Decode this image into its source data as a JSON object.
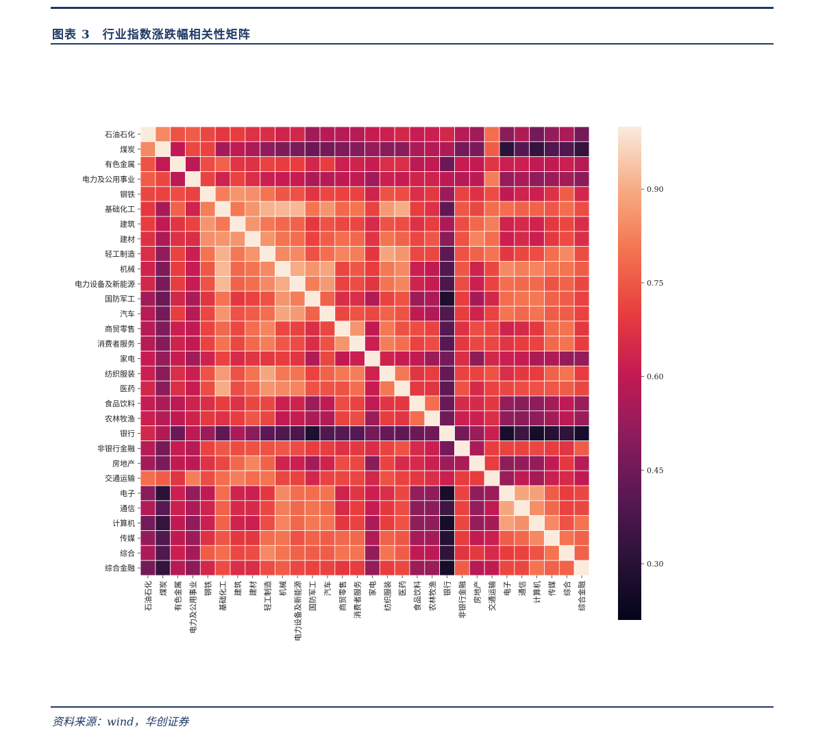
{
  "header": {
    "title": "图表 3　行业指数涨跌幅相关性矩阵"
  },
  "footer": {
    "source": "资料来源：wind，华创证券"
  },
  "chart_data": {
    "type": "heatmap",
    "title": "",
    "xlabel": "",
    "ylabel": "",
    "categories": [
      "石油石化",
      "煤炭",
      "有色金属",
      "电力及公用事业",
      "钢铁",
      "基础化工",
      "建筑",
      "建材",
      "轻工制造",
      "机械",
      "电力设备及新能源",
      "国防军工",
      "汽车",
      "商贸零售",
      "消费者服务",
      "家电",
      "纺织服装",
      "医药",
      "食品饮料",
      "农林牧渔",
      "银行",
      "非银行金融",
      "房地产",
      "交通运输",
      "电子",
      "通信",
      "计算机",
      "传媒",
      "综合",
      "综合金融"
    ],
    "values": [
      [
        1.0,
        0.84,
        0.74,
        0.76,
        0.72,
        0.69,
        0.7,
        0.67,
        0.66,
        0.63,
        0.64,
        0.54,
        0.58,
        0.58,
        0.58,
        0.61,
        0.62,
        0.64,
        0.61,
        0.62,
        0.64,
        0.58,
        0.54,
        0.79,
        0.5,
        0.57,
        0.46,
        0.52,
        0.56,
        0.46
      ],
      [
        0.84,
        1.0,
        0.6,
        0.72,
        0.71,
        0.55,
        0.6,
        0.56,
        0.51,
        0.48,
        0.47,
        0.44,
        0.46,
        0.48,
        0.49,
        0.52,
        0.5,
        0.5,
        0.56,
        0.58,
        0.57,
        0.46,
        0.47,
        0.76,
        0.31,
        0.4,
        0.33,
        0.39,
        0.39,
        0.33
      ],
      [
        0.74,
        0.6,
        1.0,
        0.59,
        0.73,
        0.77,
        0.68,
        0.67,
        0.71,
        0.7,
        0.7,
        0.64,
        0.7,
        0.62,
        0.63,
        0.61,
        0.66,
        0.66,
        0.59,
        0.6,
        0.44,
        0.61,
        0.6,
        0.68,
        0.62,
        0.62,
        0.6,
        0.6,
        0.62,
        0.58
      ],
      [
        0.76,
        0.72,
        0.59,
        1.0,
        0.71,
        0.63,
        0.71,
        0.66,
        0.62,
        0.61,
        0.61,
        0.56,
        0.58,
        0.6,
        0.6,
        0.54,
        0.62,
        0.61,
        0.63,
        0.63,
        0.59,
        0.58,
        0.59,
        0.82,
        0.52,
        0.56,
        0.51,
        0.53,
        0.55,
        0.5
      ],
      [
        0.72,
        0.71,
        0.73,
        0.71,
        1.0,
        0.82,
        0.86,
        0.85,
        0.8,
        0.75,
        0.74,
        0.68,
        0.72,
        0.71,
        0.71,
        0.63,
        0.74,
        0.73,
        0.66,
        0.69,
        0.53,
        0.71,
        0.67,
        0.73,
        0.6,
        0.63,
        0.62,
        0.67,
        0.76,
        0.64
      ],
      [
        0.69,
        0.55,
        0.77,
        0.63,
        0.82,
        1.0,
        0.81,
        0.86,
        0.91,
        0.92,
        0.92,
        0.8,
        0.86,
        0.78,
        0.8,
        0.71,
        0.87,
        0.9,
        0.7,
        0.67,
        0.42,
        0.75,
        0.72,
        0.79,
        0.79,
        0.77,
        0.77,
        0.75,
        0.79,
        0.73
      ],
      [
        0.7,
        0.6,
        0.68,
        0.71,
        0.86,
        0.81,
        1.0,
        0.86,
        0.81,
        0.78,
        0.77,
        0.69,
        0.74,
        0.72,
        0.72,
        0.65,
        0.74,
        0.73,
        0.67,
        0.7,
        0.56,
        0.73,
        0.78,
        0.82,
        0.63,
        0.65,
        0.63,
        0.69,
        0.72,
        0.66
      ],
      [
        0.67,
        0.56,
        0.67,
        0.66,
        0.85,
        0.86,
        0.86,
        1.0,
        0.86,
        0.8,
        0.79,
        0.71,
        0.76,
        0.79,
        0.78,
        0.68,
        0.8,
        0.77,
        0.72,
        0.75,
        0.5,
        0.74,
        0.83,
        0.79,
        0.62,
        0.65,
        0.62,
        0.69,
        0.73,
        0.66
      ],
      [
        0.66,
        0.51,
        0.71,
        0.62,
        0.8,
        0.91,
        0.81,
        0.86,
        1.0,
        0.84,
        0.84,
        0.74,
        0.79,
        0.83,
        0.82,
        0.69,
        0.89,
        0.86,
        0.72,
        0.72,
        0.41,
        0.74,
        0.77,
        0.8,
        0.69,
        0.72,
        0.73,
        0.79,
        0.84,
        0.73
      ],
      [
        0.63,
        0.48,
        0.7,
        0.61,
        0.75,
        0.92,
        0.78,
        0.8,
        0.84,
        1.0,
        0.9,
        0.86,
        0.89,
        0.72,
        0.75,
        0.7,
        0.81,
        0.84,
        0.62,
        0.6,
        0.39,
        0.75,
        0.63,
        0.72,
        0.84,
        0.82,
        0.83,
        0.8,
        0.8,
        0.76
      ],
      [
        0.64,
        0.47,
        0.7,
        0.61,
        0.74,
        0.92,
        0.77,
        0.79,
        0.84,
        0.9,
        1.0,
        0.82,
        0.87,
        0.71,
        0.73,
        0.68,
        0.8,
        0.83,
        0.63,
        0.61,
        0.38,
        0.73,
        0.62,
        0.71,
        0.79,
        0.78,
        0.78,
        0.74,
        0.77,
        0.72
      ],
      [
        0.54,
        0.44,
        0.64,
        0.56,
        0.68,
        0.8,
        0.69,
        0.71,
        0.74,
        0.86,
        0.82,
        1.0,
        0.77,
        0.66,
        0.66,
        0.57,
        0.71,
        0.74,
        0.53,
        0.56,
        0.28,
        0.7,
        0.55,
        0.64,
        0.79,
        0.8,
        0.81,
        0.77,
        0.76,
        0.71
      ],
      [
        0.58,
        0.46,
        0.7,
        0.58,
        0.72,
        0.86,
        0.74,
        0.76,
        0.79,
        0.89,
        0.87,
        0.77,
        1.0,
        0.72,
        0.74,
        0.72,
        0.77,
        0.74,
        0.6,
        0.57,
        0.39,
        0.7,
        0.63,
        0.71,
        0.8,
        0.78,
        0.8,
        0.76,
        0.76,
        0.71
      ],
      [
        0.58,
        0.48,
        0.62,
        0.6,
        0.71,
        0.78,
        0.72,
        0.79,
        0.83,
        0.72,
        0.71,
        0.66,
        0.72,
        1.0,
        0.86,
        0.6,
        0.81,
        0.74,
        0.73,
        0.71,
        0.4,
        0.67,
        0.73,
        0.72,
        0.63,
        0.65,
        0.69,
        0.78,
        0.8,
        0.69
      ],
      [
        0.58,
        0.49,
        0.63,
        0.6,
        0.71,
        0.8,
        0.72,
        0.78,
        0.82,
        0.75,
        0.73,
        0.66,
        0.74,
        0.86,
        1.0,
        0.62,
        0.82,
        0.79,
        0.71,
        0.73,
        0.4,
        0.69,
        0.72,
        0.72,
        0.68,
        0.7,
        0.71,
        0.78,
        0.8,
        0.7
      ],
      [
        0.61,
        0.52,
        0.61,
        0.54,
        0.63,
        0.71,
        0.65,
        0.68,
        0.69,
        0.7,
        0.68,
        0.57,
        0.72,
        0.6,
        0.62,
        1.0,
        0.63,
        0.61,
        0.6,
        0.53,
        0.46,
        0.66,
        0.5,
        0.64,
        0.62,
        0.61,
        0.56,
        0.57,
        0.52,
        0.52
      ],
      [
        0.62,
        0.5,
        0.66,
        0.62,
        0.74,
        0.87,
        0.74,
        0.8,
        0.89,
        0.81,
        0.8,
        0.71,
        0.77,
        0.81,
        0.82,
        0.63,
        1.0,
        0.81,
        0.68,
        0.7,
        0.43,
        0.71,
        0.71,
        0.74,
        0.66,
        0.69,
        0.7,
        0.77,
        0.8,
        0.7
      ],
      [
        0.64,
        0.5,
        0.66,
        0.61,
        0.73,
        0.9,
        0.73,
        0.77,
        0.86,
        0.84,
        0.83,
        0.74,
        0.74,
        0.74,
        0.79,
        0.61,
        0.81,
        1.0,
        0.69,
        0.68,
        0.42,
        0.74,
        0.65,
        0.71,
        0.72,
        0.73,
        0.74,
        0.75,
        0.76,
        0.72
      ],
      [
        0.61,
        0.56,
        0.59,
        0.63,
        0.66,
        0.7,
        0.67,
        0.72,
        0.72,
        0.62,
        0.63,
        0.53,
        0.6,
        0.73,
        0.71,
        0.6,
        0.68,
        0.69,
        1.0,
        0.79,
        0.44,
        0.65,
        0.65,
        0.69,
        0.52,
        0.5,
        0.51,
        0.55,
        0.6,
        0.53
      ],
      [
        0.62,
        0.58,
        0.6,
        0.63,
        0.69,
        0.67,
        0.7,
        0.75,
        0.72,
        0.6,
        0.61,
        0.56,
        0.57,
        0.71,
        0.73,
        0.53,
        0.7,
        0.68,
        0.79,
        1.0,
        0.45,
        0.62,
        0.62,
        0.66,
        0.51,
        0.5,
        0.51,
        0.55,
        0.59,
        0.53
      ],
      [
        0.64,
        0.57,
        0.44,
        0.59,
        0.53,
        0.42,
        0.56,
        0.5,
        0.41,
        0.39,
        0.38,
        0.28,
        0.39,
        0.4,
        0.4,
        0.46,
        0.43,
        0.42,
        0.44,
        0.45,
        1.0,
        0.46,
        0.53,
        0.62,
        0.27,
        0.35,
        0.26,
        0.3,
        0.32,
        0.26
      ],
      [
        0.58,
        0.46,
        0.61,
        0.58,
        0.71,
        0.75,
        0.73,
        0.74,
        0.74,
        0.75,
        0.73,
        0.7,
        0.7,
        0.67,
        0.69,
        0.66,
        0.71,
        0.74,
        0.65,
        0.62,
        0.46,
        1.0,
        0.56,
        0.7,
        0.71,
        0.71,
        0.72,
        0.7,
        0.68,
        0.76
      ],
      [
        0.54,
        0.47,
        0.6,
        0.59,
        0.67,
        0.72,
        0.78,
        0.83,
        0.77,
        0.63,
        0.62,
        0.55,
        0.63,
        0.73,
        0.72,
        0.5,
        0.71,
        0.65,
        0.65,
        0.62,
        0.53,
        0.56,
        1.0,
        0.7,
        0.51,
        0.52,
        0.52,
        0.6,
        0.69,
        0.58
      ],
      [
        0.79,
        0.76,
        0.68,
        0.82,
        0.73,
        0.79,
        0.82,
        0.79,
        0.8,
        0.72,
        0.71,
        0.64,
        0.71,
        0.72,
        0.72,
        0.64,
        0.74,
        0.71,
        0.69,
        0.66,
        0.62,
        0.7,
        0.7,
        1.0,
        0.53,
        0.6,
        0.55,
        0.62,
        0.65,
        0.6
      ],
      [
        0.5,
        0.31,
        0.62,
        0.52,
        0.6,
        0.79,
        0.63,
        0.62,
        0.69,
        0.84,
        0.79,
        0.79,
        0.8,
        0.63,
        0.68,
        0.62,
        0.66,
        0.72,
        0.52,
        0.51,
        0.27,
        0.71,
        0.51,
        0.53,
        1.0,
        0.89,
        0.88,
        0.76,
        0.7,
        0.72
      ],
      [
        0.57,
        0.4,
        0.62,
        0.56,
        0.63,
        0.77,
        0.65,
        0.65,
        0.72,
        0.82,
        0.78,
        0.8,
        0.78,
        0.65,
        0.7,
        0.61,
        0.69,
        0.73,
        0.5,
        0.5,
        0.35,
        0.71,
        0.52,
        0.6,
        0.89,
        1.0,
        0.85,
        0.78,
        0.71,
        0.72
      ],
      [
        0.46,
        0.33,
        0.6,
        0.51,
        0.62,
        0.77,
        0.63,
        0.62,
        0.73,
        0.83,
        0.78,
        0.81,
        0.8,
        0.69,
        0.71,
        0.56,
        0.7,
        0.74,
        0.51,
        0.51,
        0.26,
        0.72,
        0.52,
        0.55,
        0.88,
        0.85,
        1.0,
        0.84,
        0.74,
        0.8
      ],
      [
        0.52,
        0.39,
        0.6,
        0.53,
        0.67,
        0.75,
        0.69,
        0.69,
        0.79,
        0.8,
        0.74,
        0.77,
        0.76,
        0.78,
        0.78,
        0.57,
        0.77,
        0.75,
        0.55,
        0.55,
        0.3,
        0.7,
        0.6,
        0.62,
        0.76,
        0.78,
        0.84,
        1.0,
        0.8,
        0.77
      ],
      [
        0.56,
        0.39,
        0.62,
        0.55,
        0.76,
        0.79,
        0.72,
        0.73,
        0.84,
        0.8,
        0.77,
        0.76,
        0.76,
        0.8,
        0.8,
        0.52,
        0.8,
        0.76,
        0.6,
        0.59,
        0.32,
        0.68,
        0.69,
        0.65,
        0.7,
        0.71,
        0.74,
        0.8,
        1.0,
        0.77
      ],
      [
        0.46,
        0.33,
        0.58,
        0.5,
        0.64,
        0.73,
        0.66,
        0.66,
        0.73,
        0.76,
        0.72,
        0.71,
        0.71,
        0.69,
        0.7,
        0.52,
        0.7,
        0.72,
        0.53,
        0.53,
        0.26,
        0.76,
        0.58,
        0.6,
        0.72,
        0.72,
        0.8,
        0.77,
        0.77,
        1.0
      ]
    ],
    "colorbar": {
      "min": 0.21,
      "max": 1.0,
      "ticks": [
        0.3,
        0.45,
        0.6,
        0.75,
        0.9
      ],
      "tick_labels": [
        "0.30",
        "0.45",
        "0.60",
        "0.75",
        "0.90"
      ]
    }
  }
}
